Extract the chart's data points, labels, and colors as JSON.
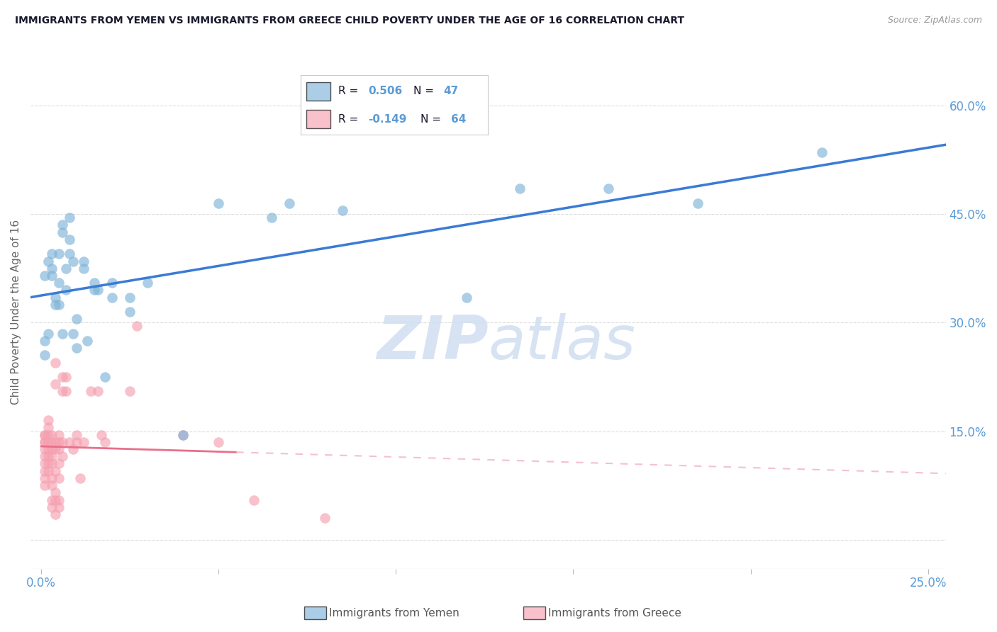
{
  "title": "IMMIGRANTS FROM YEMEN VS IMMIGRANTS FROM GREECE CHILD POVERTY UNDER THE AGE OF 16 CORRELATION CHART",
  "source": "Source: ZipAtlas.com",
  "ylabel": "Child Poverty Under the Age of 16",
  "yticks": [
    0.0,
    0.15,
    0.3,
    0.45,
    0.6
  ],
  "ytick_labels": [
    "",
    "15.0%",
    "30.0%",
    "45.0%",
    "60.0%"
  ],
  "xticks": [
    0.0,
    0.05,
    0.1,
    0.15,
    0.2,
    0.25
  ],
  "xtick_labels": [
    "0.0%",
    "",
    "",
    "",
    "",
    "25.0%"
  ],
  "xlim": [
    -0.003,
    0.255
  ],
  "ylim": [
    -0.04,
    0.67
  ],
  "watermark_zip": "ZIP",
  "watermark_atlas": "atlas",
  "scatter_yemen": [
    [
      0.001,
      0.275
    ],
    [
      0.001,
      0.255
    ],
    [
      0.001,
      0.365
    ],
    [
      0.002,
      0.385
    ],
    [
      0.002,
      0.285
    ],
    [
      0.003,
      0.395
    ],
    [
      0.003,
      0.375
    ],
    [
      0.003,
      0.365
    ],
    [
      0.004,
      0.335
    ],
    [
      0.004,
      0.325
    ],
    [
      0.005,
      0.395
    ],
    [
      0.005,
      0.325
    ],
    [
      0.005,
      0.355
    ],
    [
      0.006,
      0.435
    ],
    [
      0.006,
      0.425
    ],
    [
      0.006,
      0.285
    ],
    [
      0.007,
      0.375
    ],
    [
      0.007,
      0.345
    ],
    [
      0.008,
      0.445
    ],
    [
      0.008,
      0.415
    ],
    [
      0.008,
      0.395
    ],
    [
      0.009,
      0.385
    ],
    [
      0.009,
      0.285
    ],
    [
      0.01,
      0.305
    ],
    [
      0.01,
      0.265
    ],
    [
      0.012,
      0.385
    ],
    [
      0.012,
      0.375
    ],
    [
      0.013,
      0.275
    ],
    [
      0.015,
      0.355
    ],
    [
      0.015,
      0.345
    ],
    [
      0.016,
      0.345
    ],
    [
      0.018,
      0.225
    ],
    [
      0.02,
      0.335
    ],
    [
      0.02,
      0.355
    ],
    [
      0.025,
      0.335
    ],
    [
      0.025,
      0.315
    ],
    [
      0.03,
      0.355
    ],
    [
      0.04,
      0.145
    ],
    [
      0.05,
      0.465
    ],
    [
      0.065,
      0.445
    ],
    [
      0.07,
      0.465
    ],
    [
      0.085,
      0.455
    ],
    [
      0.12,
      0.335
    ],
    [
      0.135,
      0.485
    ],
    [
      0.16,
      0.485
    ],
    [
      0.185,
      0.465
    ],
    [
      0.22,
      0.535
    ]
  ],
  "scatter_greece": [
    [
      0.001,
      0.145
    ],
    [
      0.001,
      0.135
    ],
    [
      0.001,
      0.125
    ],
    [
      0.001,
      0.115
    ],
    [
      0.001,
      0.105
    ],
    [
      0.001,
      0.095
    ],
    [
      0.001,
      0.085
    ],
    [
      0.001,
      0.075
    ],
    [
      0.001,
      0.135
    ],
    [
      0.001,
      0.145
    ],
    [
      0.002,
      0.145
    ],
    [
      0.002,
      0.135
    ],
    [
      0.002,
      0.125
    ],
    [
      0.002,
      0.115
    ],
    [
      0.002,
      0.105
    ],
    [
      0.002,
      0.095
    ],
    [
      0.002,
      0.165
    ],
    [
      0.002,
      0.155
    ],
    [
      0.003,
      0.145
    ],
    [
      0.003,
      0.125
    ],
    [
      0.003,
      0.115
    ],
    [
      0.003,
      0.105
    ],
    [
      0.003,
      0.085
    ],
    [
      0.003,
      0.075
    ],
    [
      0.003,
      0.055
    ],
    [
      0.003,
      0.045
    ],
    [
      0.003,
      0.135
    ],
    [
      0.004,
      0.245
    ],
    [
      0.004,
      0.215
    ],
    [
      0.004,
      0.135
    ],
    [
      0.004,
      0.125
    ],
    [
      0.004,
      0.095
    ],
    [
      0.004,
      0.065
    ],
    [
      0.004,
      0.055
    ],
    [
      0.004,
      0.035
    ],
    [
      0.005,
      0.145
    ],
    [
      0.005,
      0.135
    ],
    [
      0.005,
      0.125
    ],
    [
      0.005,
      0.105
    ],
    [
      0.005,
      0.085
    ],
    [
      0.005,
      0.055
    ],
    [
      0.005,
      0.045
    ],
    [
      0.006,
      0.225
    ],
    [
      0.006,
      0.205
    ],
    [
      0.006,
      0.135
    ],
    [
      0.006,
      0.115
    ],
    [
      0.007,
      0.225
    ],
    [
      0.007,
      0.205
    ],
    [
      0.008,
      0.135
    ],
    [
      0.009,
      0.125
    ],
    [
      0.01,
      0.145
    ],
    [
      0.01,
      0.135
    ],
    [
      0.011,
      0.085
    ],
    [
      0.012,
      0.135
    ],
    [
      0.014,
      0.205
    ],
    [
      0.016,
      0.205
    ],
    [
      0.017,
      0.145
    ],
    [
      0.018,
      0.135
    ],
    [
      0.025,
      0.205
    ],
    [
      0.027,
      0.295
    ],
    [
      0.04,
      0.145
    ],
    [
      0.05,
      0.135
    ],
    [
      0.06,
      0.055
    ],
    [
      0.08,
      0.03
    ]
  ],
  "yemen_color": "#7EB3D8",
  "greece_color": "#F5A0B0",
  "trendline_yemen_color": "#3A7BD5",
  "trendline_greece_solid_color": "#E8708A",
  "trendline_greece_dash_color": "#F5C0CC",
  "background_color": "#FFFFFF",
  "grid_color": "#DDDDDD",
  "axis_label_color": "#5B9BD5",
  "text_color": "#333333",
  "title_color": "#1A1A2E",
  "watermark_color": "#D0DFF0",
  "legend_r_color": "#5B9BD5",
  "legend_text_color": "#1A1A2E"
}
